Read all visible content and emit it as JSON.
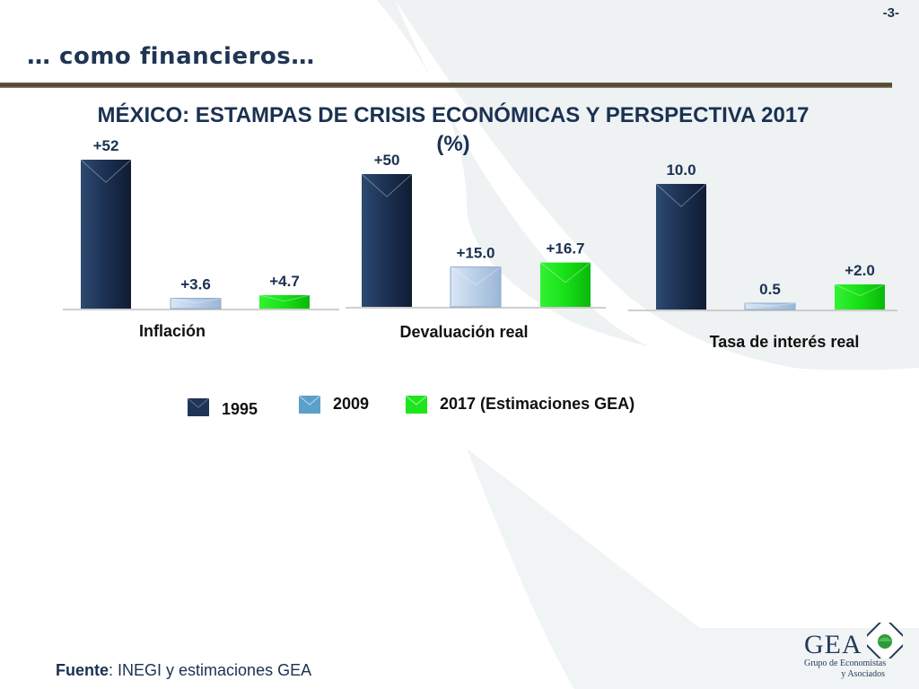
{
  "page": {
    "number": "-3-",
    "heading": "… como financieros…"
  },
  "chart_data": {
    "type": "bar",
    "title": "MÉXICO: ESTAMPAS DE CRISIS ECONÓMICAS Y PERSPECTIVA 2017",
    "subtitle": "(%)",
    "series_names": [
      "1995",
      "2009",
      "2017 (Estimaciones GEA)"
    ],
    "colors": [
      "#1f3557",
      "#bcd3ec",
      "#1ee51e"
    ],
    "groups": [
      {
        "category": "Inflación",
        "values": [
          52,
          3.6,
          4.7
        ],
        "labels": [
          "+52",
          "+3.6",
          "+4.7"
        ]
      },
      {
        "category": "Devaluación real",
        "values": [
          50,
          15.0,
          16.7
        ],
        "labels": [
          "+50",
          "+15.0",
          "+16.7"
        ]
      },
      {
        "category": "Tasa de interés real",
        "values": [
          10.0,
          0.5,
          2.0
        ],
        "labels": [
          "10.0",
          "0.5",
          "+2.0"
        ]
      }
    ],
    "legend_position": "bottom",
    "grid": false
  },
  "source": {
    "prefix": "Fuente",
    "text": ": INEGI y estimaciones GEA"
  },
  "logo": {
    "name": "GEA",
    "line1": "Grupo de Economistas",
    "line2": "y Asociados"
  }
}
